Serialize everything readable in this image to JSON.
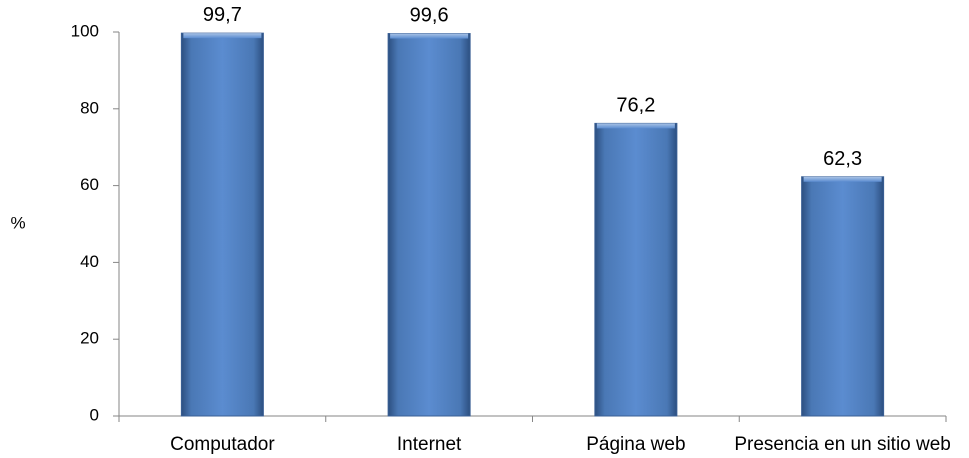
{
  "chart_data": {
    "type": "bar",
    "categories": [
      "Computador",
      "Internet",
      "Página web",
      "Presencia en un sitio web"
    ],
    "values": [
      99.7,
      99.6,
      76.2,
      62.3
    ],
    "data_labels": [
      "99,7",
      "99,6",
      "76,2",
      "62,3"
    ],
    "title": "",
    "xlabel": "",
    "ylabel": "%",
    "ylim": [
      0,
      100
    ],
    "yticks": [
      0,
      20,
      40,
      60,
      80,
      100
    ],
    "grid": false,
    "legend": "none",
    "bar_color": "#4f81bd"
  }
}
